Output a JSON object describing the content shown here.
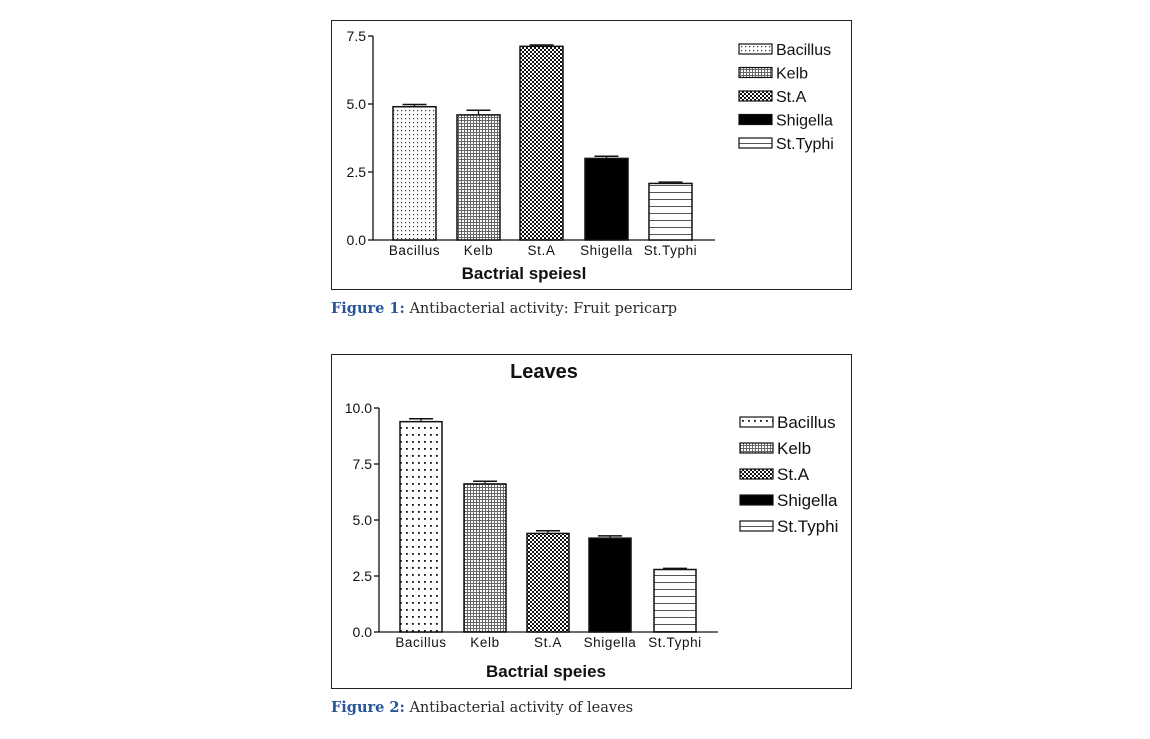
{
  "figures": [
    {
      "caption_label": "Figure 1:",
      "caption_text": " Antibacterial activity: Fruit pericarp"
    },
    {
      "caption_label": "Figure 2:",
      "caption_text": " Antibacterial activity of leaves"
    }
  ],
  "chart_data": [
    {
      "type": "bar",
      "title": "",
      "xlabel": "Bactrial speiesl",
      "ylabel": "",
      "categories": [
        "Bacillus",
        "Kelb",
        "St.A",
        "Shigella",
        "St.Typhi"
      ],
      "values": [
        4.9,
        4.6,
        7.12,
        3.0,
        2.08
      ],
      "error_upper": [
        4.98,
        4.77,
        7.17,
        3.08,
        2.13
      ],
      "ylim": [
        0,
        7.5
      ],
      "yticks": [
        "0.0",
        "2.5",
        "5.0",
        "7.5"
      ],
      "ytick_values": [
        0,
        2.5,
        5.0,
        7.5
      ],
      "legend": [
        "Bacillus",
        "Kelb",
        "St.A",
        "Shigella",
        "St.Typhi"
      ],
      "legend_position": "top-right",
      "patterns": [
        "dots",
        "fine-grid",
        "checker",
        "solid-black",
        "horizontal-lines"
      ],
      "grid": false
    },
    {
      "type": "bar",
      "title": "Leaves",
      "xlabel": "Bactrial speies",
      "ylabel": "",
      "categories": [
        "Bacillus",
        "Kelb",
        "St.A",
        "Shigella",
        "St.Typhi"
      ],
      "values": [
        9.39,
        6.61,
        4.4,
        4.19,
        2.79
      ],
      "error_upper": [
        9.52,
        6.73,
        4.52,
        4.29,
        2.84
      ],
      "ylim": [
        0,
        10
      ],
      "yticks": [
        "0.0",
        "2.5",
        "5.0",
        "7.5",
        "10.0"
      ],
      "ytick_values": [
        0,
        2.5,
        5.0,
        7.5,
        10.0
      ],
      "legend": [
        "Bacillus",
        "Kelb",
        "St.A",
        "Shigella",
        "St.Typhi"
      ],
      "legend_position": "top-right",
      "patterns": [
        "sparse-dots",
        "fine-grid",
        "checker",
        "solid-black",
        "horizontal-lines"
      ],
      "grid": false
    }
  ]
}
